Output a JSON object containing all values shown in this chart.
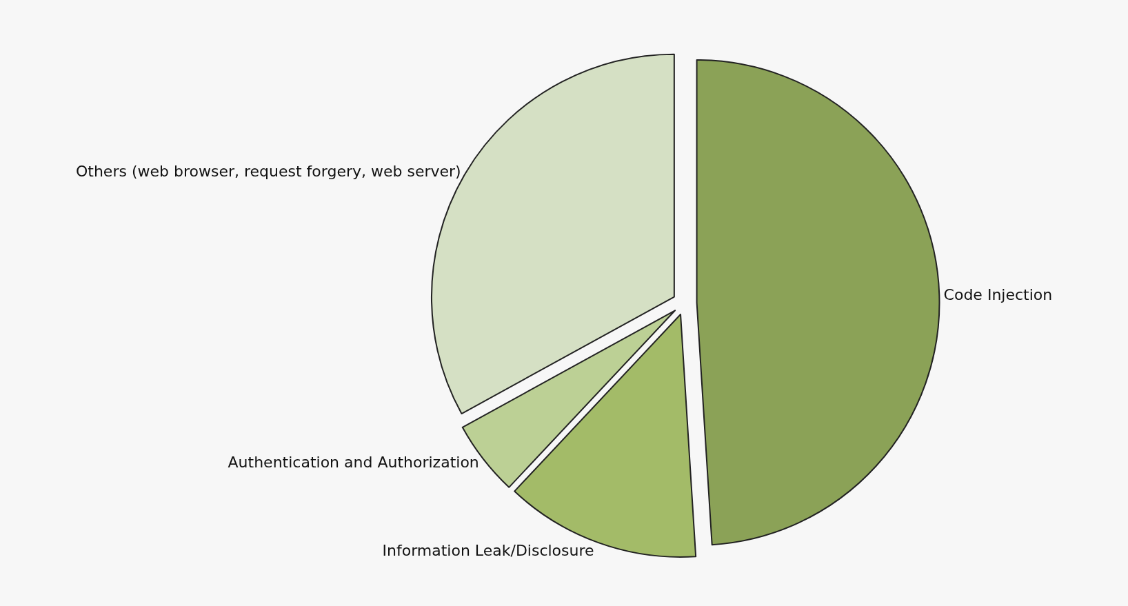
{
  "chart_data": {
    "type": "pie",
    "categories": [
      "Code Injection",
      "Information Leak/Disclosure",
      "Authentication and Authorization",
      "Others (web browser, request forgery, web server)"
    ],
    "values": [
      49,
      13,
      5,
      33
    ],
    "colors": [
      "#8ba257",
      "#a3bb68",
      "#bcd095",
      "#d5e0c4"
    ],
    "legend": false
  }
}
